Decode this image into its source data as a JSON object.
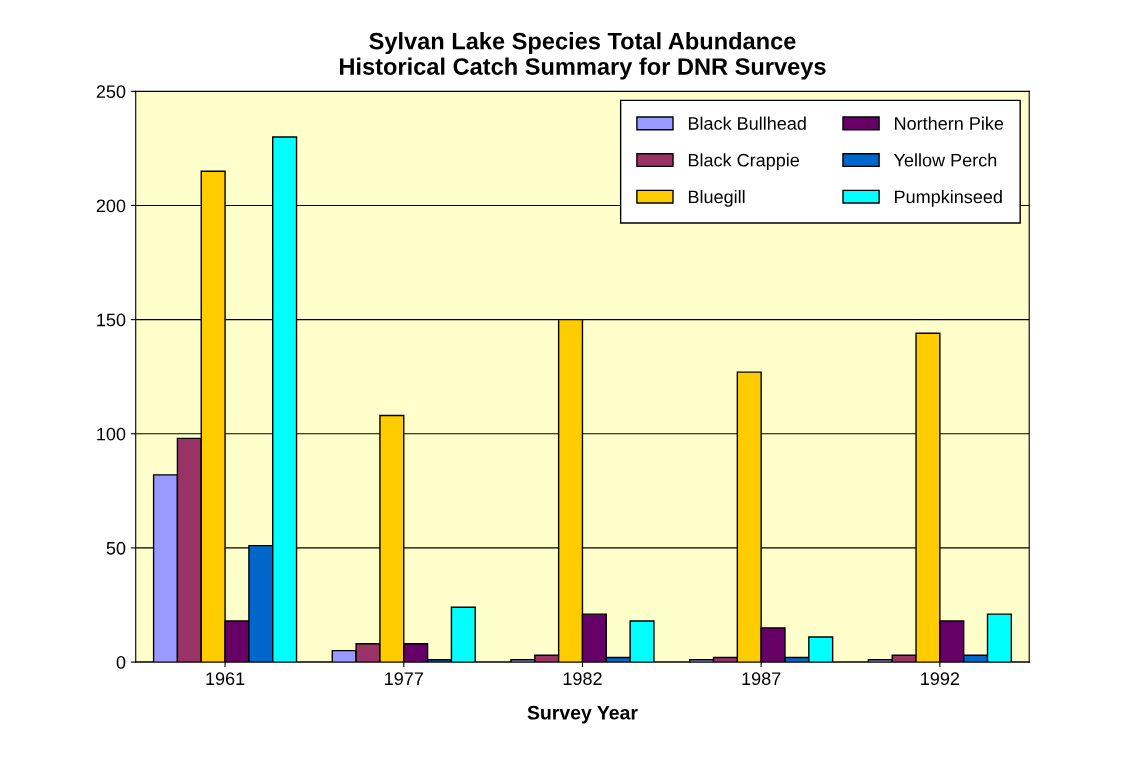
{
  "chart_data": {
    "type": "bar",
    "title": "Sylvan Lake Species Total Abundance\nHistorical Catch Summary for DNR Surveys",
    "xlabel": "Survey Year",
    "categories": [
      "1961",
      "1977",
      "1982",
      "1987",
      "1992"
    ],
    "series": [
      {
        "name": "Black Bullhead",
        "color": "#9999ff",
        "values": [
          82,
          5,
          1,
          1,
          1
        ]
      },
      {
        "name": "Black Crappie",
        "color": "#993366",
        "values": [
          98,
          8,
          3,
          2,
          3
        ]
      },
      {
        "name": "Bluegill",
        "color": "#ffcc00",
        "values": [
          215,
          108,
          150,
          127,
          144
        ]
      },
      {
        "name": "Northern Pike",
        "color": "#660066",
        "values": [
          18,
          8,
          21,
          15,
          18
        ]
      },
      {
        "name": "Yellow Perch",
        "color": "#0066cc",
        "values": [
          51,
          1,
          2,
          2,
          3
        ]
      },
      {
        "name": "Pumpkinseed",
        "color": "#00ffff",
        "values": [
          230,
          24,
          18,
          11,
          21
        ]
      }
    ],
    "ylim": [
      0,
      250
    ],
    "yticks": [
      0,
      50,
      100,
      150,
      200,
      250
    ],
    "grid": "y",
    "legend": "top right"
  }
}
